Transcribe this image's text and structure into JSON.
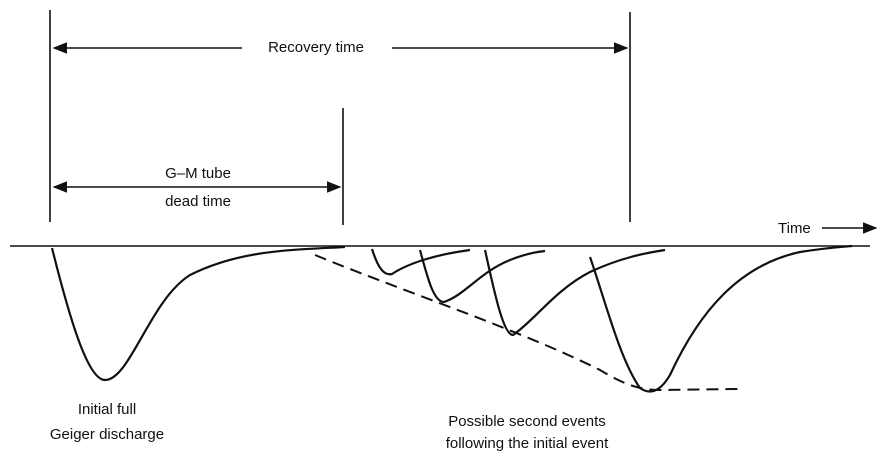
{
  "labels": {
    "recovery_time": "Recovery time",
    "dead_time_line1": "G–M tube",
    "dead_time_line2": "dead time",
    "time_axis": "Time",
    "initial_line1": "Initial full",
    "initial_line2": "Geiger discharge",
    "second_line1": "Possible second events",
    "second_line2": "following the initial event"
  }
}
